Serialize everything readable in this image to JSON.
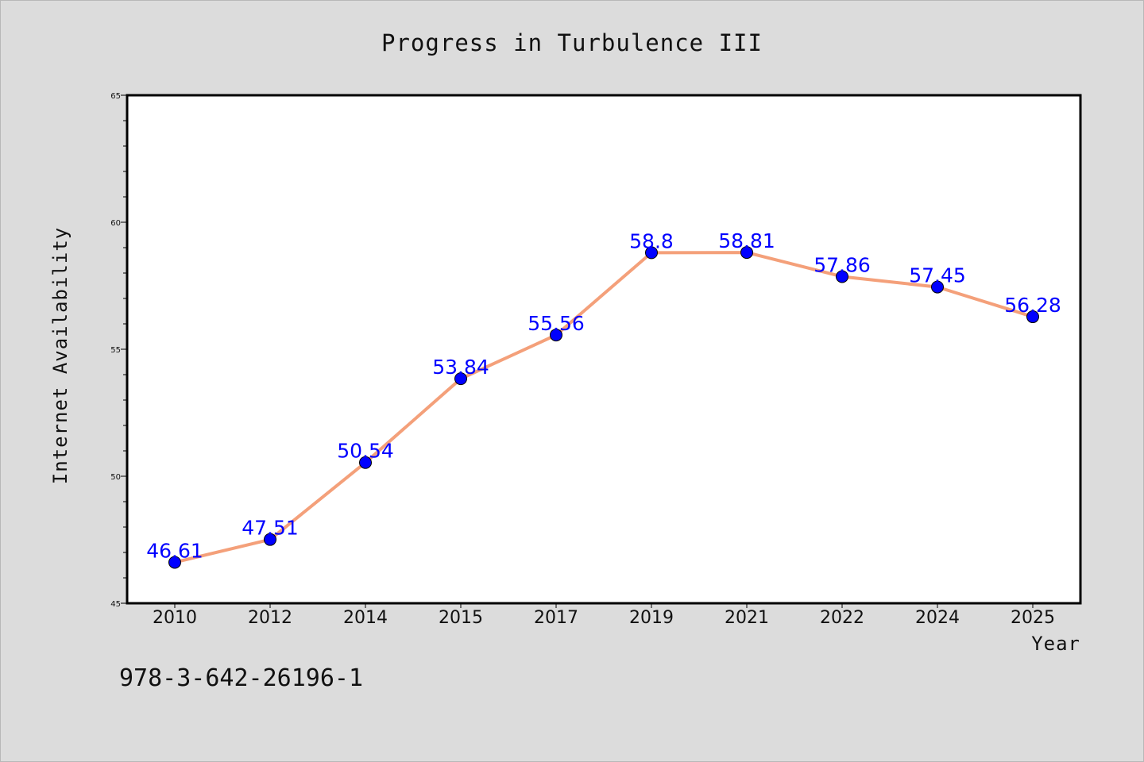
{
  "chart_data": {
    "type": "line",
    "title": "Progress in Turbulence III",
    "xlabel": "Year",
    "ylabel": "Internet Availability",
    "categories": [
      "2010",
      "2012",
      "2014",
      "2015",
      "2017",
      "2019",
      "2021",
      "2022",
      "2024",
      "2025"
    ],
    "series": [
      {
        "values": [
          46.61,
          47.51,
          50.54,
          53.84,
          55.56,
          58.8,
          58.81,
          57.86,
          57.45,
          56.28
        ],
        "data_labels": [
          "46.61",
          "47.51",
          "50.54",
          "53.84",
          "55.56",
          "58.8",
          "58.81",
          "57.86",
          "57.45",
          "56.28"
        ],
        "line_color": "#f4a07a",
        "marker_color": "#0000ff"
      }
    ],
    "ylim": [
      45,
      65
    ],
    "y_ticks": [
      "45",
      "50",
      "55",
      "60",
      "65"
    ],
    "grid": false,
    "background": "#ffffff",
    "page_background": "#dcdcdc"
  },
  "annotation": {
    "isbn": "978-3-642-26196-1"
  }
}
